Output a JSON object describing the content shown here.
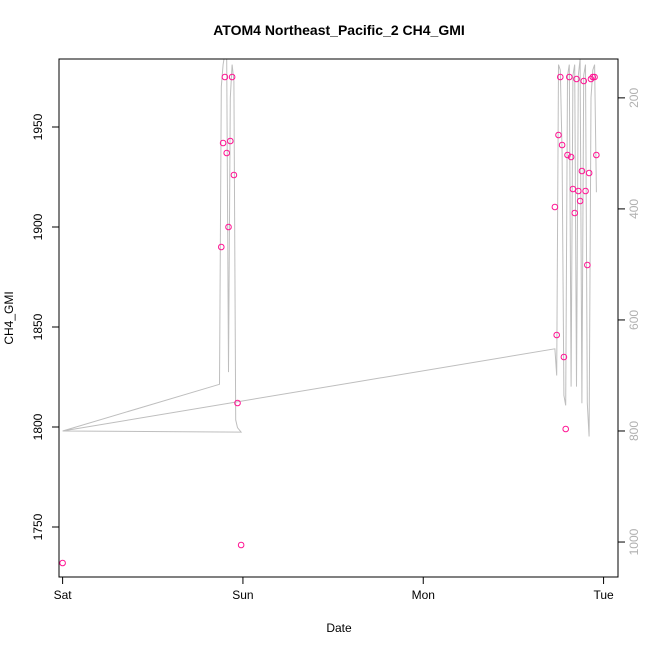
{
  "chart_data": {
    "type": "scatter",
    "title": "ATOM4 Northeast_Pacific_2 CH4_GMI",
    "xlabel": "Date",
    "ylabel": "CH4_GMI",
    "x_ticks": [
      "Sat",
      "Sun",
      "Mon",
      "Tue"
    ],
    "y_ticks": [
      1750,
      1800,
      1850,
      1900,
      1950
    ],
    "y_right_ticks": [
      200,
      400,
      600,
      800,
      1000
    ],
    "xlim_days": [
      -0.02,
      3.08
    ],
    "ylim": [
      1725,
      1984
    ],
    "y_right_lim": [
      1063,
      130
    ],
    "colors": {
      "points": "#ff1493",
      "line": "#bebebe"
    },
    "series": [
      {
        "values": [
          [
            0.0,
            1732
          ],
          [
            0.88,
            1890
          ],
          [
            0.89,
            1942
          ],
          [
            0.9,
            1975
          ],
          [
            0.91,
            1937
          ],
          [
            0.92,
            1900
          ],
          [
            0.93,
            1943
          ],
          [
            0.94,
            1975
          ],
          [
            0.95,
            1926
          ],
          [
            0.97,
            1812
          ],
          [
            0.99,
            1741
          ],
          [
            2.73,
            1910
          ],
          [
            2.74,
            1846
          ],
          [
            2.75,
            1946
          ],
          [
            2.76,
            1975
          ],
          [
            2.77,
            1941
          ],
          [
            2.78,
            1835
          ],
          [
            2.79,
            1799
          ],
          [
            2.8,
            1936
          ],
          [
            2.81,
            1975
          ],
          [
            2.82,
            1935
          ],
          [
            2.83,
            1919
          ],
          [
            2.84,
            1907
          ],
          [
            2.85,
            1974
          ],
          [
            2.86,
            1918
          ],
          [
            2.87,
            1913
          ],
          [
            2.88,
            1928
          ],
          [
            2.89,
            1973
          ],
          [
            2.9,
            1918
          ],
          [
            2.91,
            1881
          ],
          [
            2.92,
            1927
          ],
          [
            2.93,
            1974
          ],
          [
            2.94,
            1975
          ],
          [
            2.95,
            1975
          ],
          [
            2.96,
            1936
          ]
        ]
      },
      {
        "axis": "right",
        "values": [
          [
            0.0,
            800
          ],
          [
            0.87,
            716
          ],
          [
            0.88,
            180
          ],
          [
            0.89,
            140
          ],
          [
            0.9,
            120
          ],
          [
            0.91,
            130
          ],
          [
            0.92,
            694
          ],
          [
            0.93,
            200
          ],
          [
            0.94,
            140
          ],
          [
            0.95,
            170
          ],
          [
            0.96,
            780
          ],
          [
            0.97,
            794
          ],
          [
            0.99,
            802
          ],
          [
            0.0,
            800
          ],
          [
            2.73,
            652
          ],
          [
            2.74,
            700
          ],
          [
            2.75,
            140
          ],
          [
            2.76,
            150
          ],
          [
            2.77,
            300
          ],
          [
            2.78,
            736
          ],
          [
            2.79,
            754
          ],
          [
            2.8,
            160
          ],
          [
            2.81,
            140
          ],
          [
            2.82,
            720
          ],
          [
            2.83,
            160
          ],
          [
            2.84,
            140
          ],
          [
            2.85,
            720
          ],
          [
            2.86,
            160
          ],
          [
            2.87,
            130
          ],
          [
            2.88,
            750
          ],
          [
            2.89,
            160
          ],
          [
            2.9,
            140
          ],
          [
            2.91,
            750
          ],
          [
            2.92,
            810
          ],
          [
            2.93,
            200
          ],
          [
            2.94,
            150
          ],
          [
            2.95,
            140
          ],
          [
            2.96,
            370
          ]
        ]
      }
    ]
  }
}
